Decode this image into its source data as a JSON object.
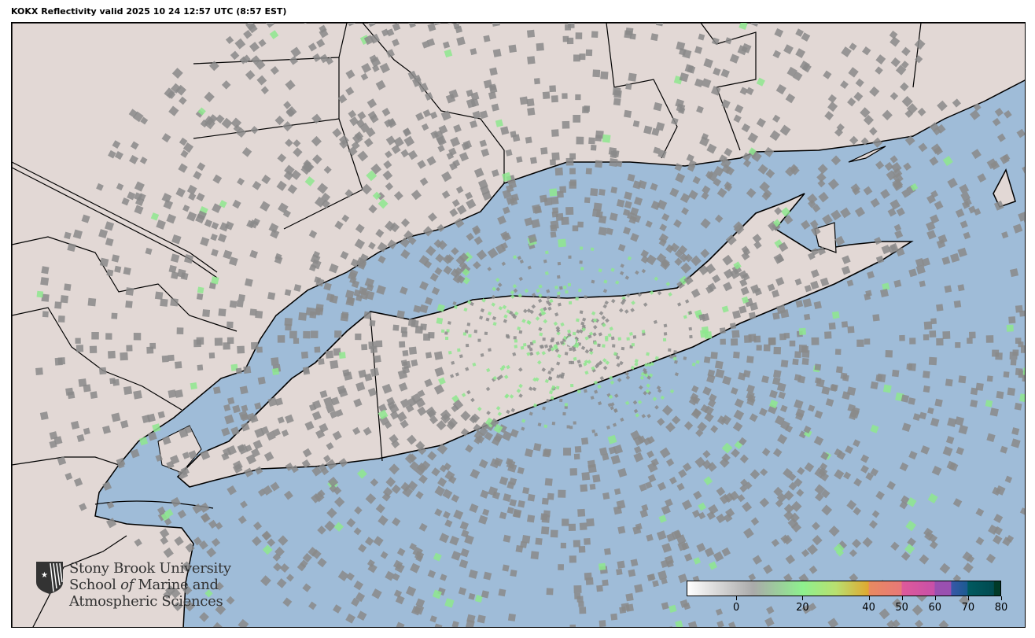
{
  "title": "KOKX Reflectivity valid 2025 10 24 12:57 UTC (8:57 EST)",
  "map": {
    "colors": {
      "water": "#9fbcd8",
      "land": "#e2d8d5",
      "border": "#000000",
      "radar_gray": "#8a8a8a",
      "radar_green": "#8ee88e"
    },
    "radar_site": "KOKX"
  },
  "logo": {
    "line1": "Stony Brook University",
    "line2_a": "School ",
    "line2_b": "of",
    "line2_c": " Marine and",
    "line3": "Atmospheric Sciences"
  },
  "colorbar": {
    "range": [
      -15,
      80
    ],
    "ticks": [
      {
        "value": 0,
        "label": "0"
      },
      {
        "value": 20,
        "label": "20"
      },
      {
        "value": 40,
        "label": "40"
      },
      {
        "value": 50,
        "label": "50"
      },
      {
        "value": 60,
        "label": "60"
      },
      {
        "value": 70,
        "label": "70"
      },
      {
        "value": 80,
        "label": "80"
      }
    ],
    "stops": [
      {
        "value": -15,
        "color": "#ffffff"
      },
      {
        "value": 5,
        "color": "#aaaaaa"
      },
      {
        "value": 20,
        "color": "#8ef08e"
      },
      {
        "value": 30,
        "color": "#b8e070"
      },
      {
        "value": 40,
        "color": "#e0a830"
      },
      {
        "value": 40.1,
        "color": "#e88a60"
      },
      {
        "value": 50,
        "color": "#e87878"
      },
      {
        "value": 50.1,
        "color": "#de5a9a"
      },
      {
        "value": 60,
        "color": "#c850a8"
      },
      {
        "value": 60.1,
        "color": "#9a50b0"
      },
      {
        "value": 65,
        "color": "#9a50b0"
      },
      {
        "value": 65.1,
        "color": "#3858a8"
      },
      {
        "value": 70,
        "color": "#1a5a90"
      },
      {
        "value": 70.1,
        "color": "#005a60"
      },
      {
        "value": 78,
        "color": "#004a50"
      },
      {
        "value": 78.1,
        "color": "#003a28"
      },
      {
        "value": 80,
        "color": "#003a28"
      }
    ]
  }
}
